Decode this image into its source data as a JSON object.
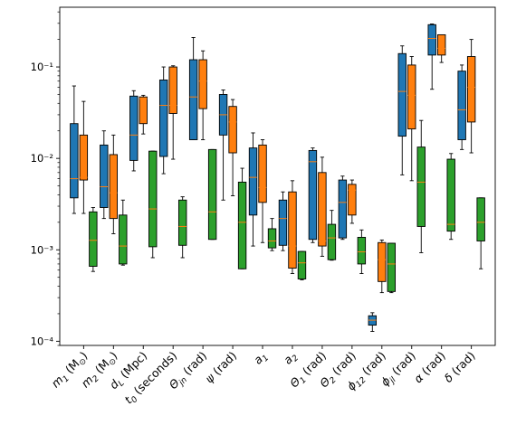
{
  "chart_data": {
    "type": "box",
    "y_scale": "log",
    "ylim": [
      9e-05,
      0.45
    ],
    "y_ticks": [
      {
        "value": 0.0001,
        "label": "10⁻⁴"
      },
      {
        "value": 0.001,
        "label": "10⁻³"
      },
      {
        "value": 0.01,
        "label": "10⁻²"
      },
      {
        "value": 0.1,
        "label": "10⁻¹"
      }
    ],
    "categories": [
      {
        "base": "m",
        "sub": "1",
        "suffix": " (M",
        "sub2": "⊙",
        "end": ")"
      },
      {
        "base": "m",
        "sub": "2",
        "suffix": " (M",
        "sub2": "⊙",
        "end": ")"
      },
      {
        "base": "d",
        "sub": "L",
        "suffix": " (Mpc)"
      },
      {
        "base": "t",
        "sub": "0",
        "suffix": " (seconds)"
      },
      {
        "base": "Θ",
        "sub": "jn",
        "suffix": " (rad)"
      },
      {
        "base": "ψ",
        "sub": "",
        "suffix": " (rad)"
      },
      {
        "base": "a",
        "sub": "1",
        "suffix": ""
      },
      {
        "base": "a",
        "sub": "2",
        "suffix": ""
      },
      {
        "base": "Θ",
        "sub": "1",
        "suffix": " (rad)"
      },
      {
        "base": "Θ",
        "sub": "2",
        "suffix": " (rad)"
      },
      {
        "base": "ϕ",
        "sub": "12",
        "suffix": " (rad)"
      },
      {
        "base": "ϕ",
        "sub": "jl",
        "suffix": " (rad)"
      },
      {
        "base": "α",
        "sub": "",
        "suffix": " (rad)"
      },
      {
        "base": "δ",
        "sub": "",
        "suffix": " (rad)"
      }
    ],
    "series": [
      {
        "color": "#1f77b4",
        "boxes": [
          {
            "whislo": 0.0025,
            "q1": 0.0037,
            "med": 0.006,
            "q3": 0.024,
            "whishi": 0.062
          },
          {
            "whislo": 0.0022,
            "q1": 0.0029,
            "med": 0.0049,
            "q3": 0.014,
            "whishi": 0.02
          },
          {
            "whislo": 0.0073,
            "q1": 0.0095,
            "med": 0.018,
            "q3": 0.048,
            "whishi": 0.055
          },
          {
            "whislo": 0.0068,
            "q1": 0.0105,
            "med": 0.038,
            "q3": 0.072,
            "whishi": 0.1
          },
          {
            "whislo": 0.016,
            "q1": 0.016,
            "med": 0.047,
            "q3": 0.12,
            "whishi": 0.21
          },
          {
            "whislo": 0.0035,
            "q1": 0.018,
            "med": 0.03,
            "q3": 0.05,
            "whishi": 0.056
          },
          {
            "whislo": 0.0011,
            "q1": 0.0024,
            "med": 0.0062,
            "q3": 0.013,
            "whishi": 0.019
          },
          {
            "whislo": 0.00098,
            "q1": 0.00112,
            "med": 0.0022,
            "q3": 0.0035,
            "whishi": 0.0043
          },
          {
            "whislo": 0.0012,
            "q1": 0.0013,
            "med": 0.0092,
            "q3": 0.0122,
            "whishi": 0.013
          },
          {
            "whislo": 0.0013,
            "q1": 0.00135,
            "med": 0.0033,
            "q3": 0.0058,
            "whishi": 0.0064
          },
          {
            "whislo": 0.000128,
            "q1": 0.00015,
            "med": 0.00017,
            "q3": 0.00019,
            "whishi": 0.000205
          },
          {
            "whislo": 0.0066,
            "q1": 0.0175,
            "med": 0.054,
            "q3": 0.14,
            "whishi": 0.17
          },
          {
            "whislo": 0.057,
            "q1": 0.135,
            "med": 0.205,
            "q3": 0.29,
            "whishi": 0.295
          },
          {
            "whislo": 0.0125,
            "q1": 0.016,
            "med": 0.034,
            "q3": 0.09,
            "whishi": 0.105
          }
        ]
      },
      {
        "color": "#ff7f0e",
        "boxes": [
          {
            "whislo": 0.0025,
            "q1": 0.0058,
            "med": 0.0062,
            "q3": 0.018,
            "whishi": 0.042
          },
          {
            "whislo": 0.0015,
            "q1": 0.0022,
            "med": 0.0042,
            "q3": 0.011,
            "whishi": 0.018
          },
          {
            "whislo": 0.0185,
            "q1": 0.024,
            "med": 0.045,
            "q3": 0.047,
            "whishi": 0.049
          },
          {
            "whislo": 0.0098,
            "q1": 0.031,
            "med": 0.038,
            "q3": 0.1,
            "whishi": 0.103
          },
          {
            "whislo": 0.016,
            "q1": 0.035,
            "med": 0.07,
            "q3": 0.12,
            "whishi": 0.15
          },
          {
            "whislo": 0.0039,
            "q1": 0.0115,
            "med": 0.025,
            "q3": 0.037,
            "whishi": 0.044
          },
          {
            "whislo": 0.0012,
            "q1": 0.0033,
            "med": 0.0048,
            "q3": 0.014,
            "whishi": 0.016
          },
          {
            "whislo": 0.00055,
            "q1": 0.00063,
            "med": 0.0011,
            "q3": 0.0043,
            "whishi": 0.0057
          },
          {
            "whislo": 0.00085,
            "q1": 0.0011,
            "med": 0.00125,
            "q3": 0.007,
            "whishi": 0.0103
          },
          {
            "whislo": 0.00195,
            "q1": 0.0024,
            "med": 0.0045,
            "q3": 0.0052,
            "whishi": 0.0058
          },
          {
            "whislo": 0.00034,
            "q1": 0.00045,
            "med": 0.00078,
            "q3": 0.0012,
            "whishi": 0.00128
          },
          {
            "whislo": 0.0057,
            "q1": 0.021,
            "med": 0.049,
            "q3": 0.105,
            "whishi": 0.13
          },
          {
            "whislo": 0.112,
            "q1": 0.135,
            "med": 0.16,
            "q3": 0.225,
            "whishi": 0.225
          },
          {
            "whislo": 0.0115,
            "q1": 0.025,
            "med": 0.06,
            "q3": 0.13,
            "whishi": 0.2
          }
        ]
      },
      {
        "color": "#2ca02c",
        "boxes": [
          {
            "whislo": 0.00058,
            "q1": 0.00066,
            "med": 0.00127,
            "q3": 0.0026,
            "whishi": 0.0029
          },
          {
            "whislo": 0.00068,
            "q1": 0.0007,
            "med": 0.0011,
            "q3": 0.0024,
            "whishi": 0.0035
          },
          {
            "whislo": 0.00082,
            "q1": 0.00108,
            "med": 0.0028,
            "q3": 0.012,
            "whishi": 0.012
          },
          {
            "whislo": 0.00082,
            "q1": 0.00112,
            "med": 0.0018,
            "q3": 0.0035,
            "whishi": 0.0038
          },
          {
            "whislo": 0.0013,
            "q1": 0.0013,
            "med": 0.0026,
            "q3": 0.0125,
            "whishi": 0.0125
          },
          {
            "whislo": 0.00062,
            "q1": 0.00062,
            "med": 0.002,
            "q3": 0.0055,
            "whishi": 0.0078
          },
          {
            "whislo": 0.00098,
            "q1": 0.00105,
            "med": 0.00125,
            "q3": 0.0017,
            "whishi": 0.0022
          },
          {
            "whislo": 0.00047,
            "q1": 0.00048,
            "med": 0.00072,
            "q3": 0.00096,
            "whishi": 0.00096
          },
          {
            "whislo": 0.00077,
            "q1": 0.00078,
            "med": 0.00135,
            "q3": 0.0019,
            "whishi": 0.0027
          },
          {
            "whislo": 0.00055,
            "q1": 0.0007,
            "med": 0.00095,
            "q3": 0.00137,
            "whishi": 0.00165
          },
          {
            "whislo": 0.00034,
            "q1": 0.00035,
            "med": 0.0007,
            "q3": 0.00118,
            "whishi": 0.00118
          },
          {
            "whislo": 0.00093,
            "q1": 0.0018,
            "med": 0.0055,
            "q3": 0.0133,
            "whishi": 0.026
          },
          {
            "whislo": 0.0013,
            "q1": 0.0016,
            "med": 0.0019,
            "q3": 0.0098,
            "whishi": 0.0113
          },
          {
            "whislo": 0.00062,
            "q1": 0.00125,
            "med": 0.002,
            "q3": 0.0037,
            "whishi": 0.0037
          }
        ]
      }
    ],
    "median_color": "#ff7f0e",
    "grid": false,
    "legend": "none"
  }
}
